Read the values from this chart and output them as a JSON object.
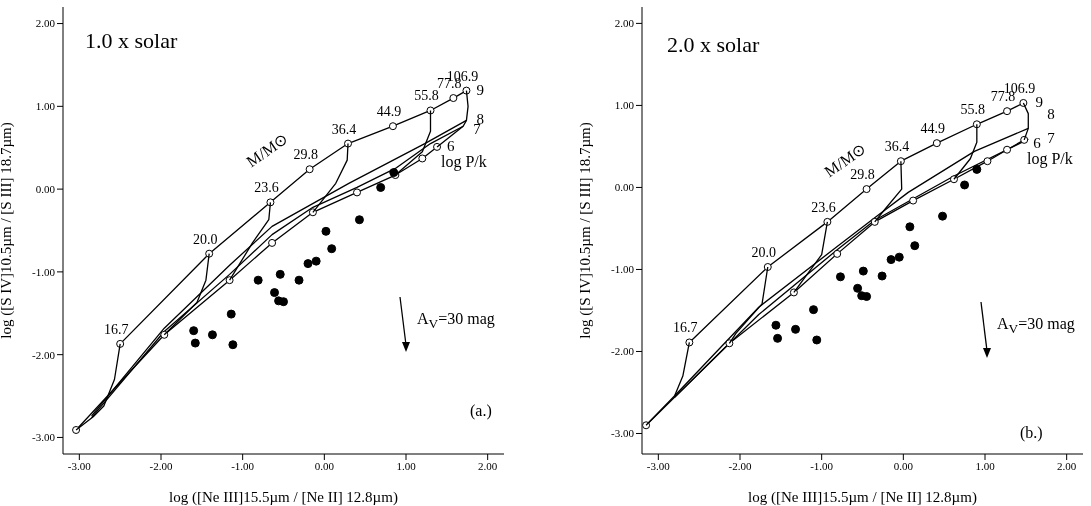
{
  "chart_data": [
    {
      "type": "line",
      "title": "1.0 x solar",
      "xlabel": "log ([Ne III]15.5µm / [Ne II] 12.8µm)",
      "ylabel": "log ([S IV]10.5µm / [S III] 18.7µm)",
      "xlim": [
        -3.2,
        2.2
      ],
      "ylim": [
        -3.2,
        2.2
      ],
      "xticks": [
        {
          "value": -3,
          "label": "-3.00"
        },
        {
          "value": -2,
          "label": "-2.00"
        },
        {
          "value": -1,
          "label": "-1.00"
        },
        {
          "value": 0,
          "label": "0.00"
        },
        {
          "value": 1,
          "label": "1.00"
        },
        {
          "value": 2,
          "label": "2.00"
        }
      ],
      "yticks": [
        {
          "value": -3,
          "label": "-3.00"
        },
        {
          "value": -2,
          "label": "-2.00"
        },
        {
          "value": -1,
          "label": "-1.00"
        },
        {
          "value": 0,
          "label": "0.00"
        },
        {
          "value": 1,
          "label": "1.00"
        },
        {
          "value": 2,
          "label": "2.00"
        }
      ],
      "series": [
        {
          "name": "9",
          "marker": "circle",
          "color": "#000000",
          "x": [
            -2.5,
            -1.41,
            -0.66,
            -0.18,
            0.29,
            0.84,
            1.3,
            1.58,
            1.74
          ],
          "values": [
            -1.87,
            -0.78,
            -0.16,
            0.24,
            0.55,
            0.76,
            0.95,
            1.1,
            1.19
          ]
        },
        {
          "name": "8",
          "type": "line",
          "marker": "none",
          "color": "#000000",
          "x": [
            -2.85,
            -1.96,
            -1.16,
            -0.64,
            0.3,
            1.23,
            1.74
          ],
          "values": [
            -2.74,
            -1.68,
            -0.92,
            -0.45,
            0.07,
            0.55,
            0.83
          ]
        },
        {
          "name": "7",
          "type": "line",
          "marker": "none",
          "color": "#000000",
          "x": [
            -2.85,
            -1.96,
            -1.16,
            -0.64,
            -0.14,
            0.4,
            0.87,
            1.3,
            1.7
          ],
          "values": [
            -2.76,
            -1.72,
            -1.03,
            -0.55,
            -0.22,
            0.02,
            0.25,
            0.55,
            0.76
          ]
        },
        {
          "name": "6",
          "type": "line",
          "marker": "circle",
          "color": "#000000",
          "x": [
            -3.04,
            -1.96,
            -1.16,
            -0.64,
            -0.14,
            0.4,
            0.87,
            1.2,
            1.38
          ],
          "values": [
            -2.91,
            -1.76,
            -1.1,
            -0.65,
            -0.28,
            -0.04,
            0.17,
            0.37,
            0.51
          ]
        },
        {
          "type": "line",
          "marker": "none",
          "color": "#000000",
          "x": [
            -2.5,
            -2.57,
            -2.7,
            -2.83,
            -3.04
          ],
          "values": [
            -1.87,
            -2.3,
            -2.62,
            -2.75,
            -2.91
          ]
        },
        {
          "type": "line",
          "marker": "none",
          "color": "#000000",
          "x": [
            -1.41,
            -1.45,
            -1.56,
            -1.96
          ],
          "values": [
            -0.78,
            -1.1,
            -1.37,
            -1.76
          ]
        },
        {
          "type": "line",
          "marker": "none",
          "color": "#000000",
          "x": [
            -0.66,
            -0.68,
            -0.88,
            -1.16
          ],
          "values": [
            -0.16,
            -0.37,
            -0.65,
            -1.1
          ]
        },
        {
          "type": "line",
          "marker": "none",
          "color": "#000000",
          "x": [
            0.29,
            0.28,
            0.14,
            -0.14
          ],
          "values": [
            0.55,
            0.35,
            0.07,
            -0.28
          ]
        },
        {
          "type": "line",
          "marker": "none",
          "color": "#000000",
          "x": [
            1.3,
            1.3,
            1.2,
            0.87
          ],
          "values": [
            0.95,
            0.7,
            0.45,
            0.17
          ]
        },
        {
          "type": "line",
          "marker": "none",
          "color": "#000000",
          "x": [
            1.74,
            1.76,
            1.74,
            1.7,
            1.38
          ],
          "values": [
            1.19,
            1.0,
            0.83,
            0.76,
            0.51
          ]
        },
        {
          "type": "scatter",
          "marker": "circle",
          "color": "#000000",
          "x": [
            0.85,
            0.69,
            0.43,
            0.02,
            0.09,
            -0.2,
            -0.1,
            -0.54,
            -0.81,
            -0.31,
            -0.61,
            -0.56,
            -0.5,
            -1.14,
            -1.6,
            -1.37,
            -1.58,
            -1.12
          ],
          "values": [
            0.2,
            0.02,
            -0.37,
            -0.51,
            -0.72,
            -0.9,
            -0.87,
            -1.03,
            -1.1,
            -1.1,
            -1.25,
            -1.35,
            -1.36,
            -1.51,
            -1.71,
            -1.76,
            -1.86,
            -1.88
          ]
        }
      ],
      "annotations": [
        "M/M⊙",
        "log P/k",
        "A$_{V}$=30 mag",
        "(a.)",
        {
          "text": "16.7",
          "x": -2.5,
          "y": -1.87
        },
        {
          "text": "20.0",
          "x": -1.41,
          "y": -0.78
        },
        {
          "text": "23.6",
          "x": -0.66,
          "y": -0.16
        },
        {
          "text": "29.8",
          "x": -0.18,
          "y": 0.24
        },
        {
          "text": "36.4",
          "x": 0.29,
          "y": 0.55
        },
        {
          "text": "44.9",
          "x": 0.84,
          "y": 0.76
        },
        {
          "text": "55.8",
          "x": 1.3,
          "y": 0.95
        },
        {
          "text": "77.8",
          "x": 1.58,
          "y": 1.1
        },
        {
          "text": "106.9",
          "x": 1.74,
          "y": 1.19
        }
      ]
    },
    {
      "type": "line",
      "title": "2.0 x solar",
      "xlabel": "log ([Ne III]15.5µm / [Ne II] 12.8µm)",
      "ylabel": "log ([S IV]10.5µm / [S III] 18.7µm)",
      "xlim": [
        -3.2,
        2.2
      ],
      "ylim": [
        -3.25,
        2.2
      ],
      "xticks": [
        {
          "value": -3,
          "label": "-3.00"
        },
        {
          "value": -2,
          "label": "-2.00"
        },
        {
          "value": -1,
          "label": "-1.00"
        },
        {
          "value": 0,
          "label": "0.00"
        },
        {
          "value": 1,
          "label": "1.00"
        },
        {
          "value": 2,
          "label": "2.00"
        }
      ],
      "yticks": [
        {
          "value": -3,
          "label": "-3.00"
        },
        {
          "value": -2,
          "label": "-2.00"
        },
        {
          "value": -1,
          "label": "-1.00"
        },
        {
          "value": 0,
          "label": "0.00"
        },
        {
          "value": 1,
          "label": "1.00"
        },
        {
          "value": 2,
          "label": "2.00"
        }
      ],
      "series": [
        {
          "name": "9",
          "marker": "circle",
          "color": "#000000",
          "x": [
            -2.62,
            -1.66,
            -0.93,
            -0.45,
            -0.03,
            0.41,
            0.9,
            1.27,
            1.47
          ],
          "values": [
            -1.89,
            -0.97,
            -0.42,
            -0.02,
            0.32,
            0.54,
            0.77,
            0.93,
            1.03
          ]
        },
        {
          "name": "8",
          "type": "line",
          "marker": "none",
          "color": "#000000",
          "x": [
            -2.8,
            -1.77,
            -0.81,
            -0.35,
            0.06,
            0.87,
            1.53
          ],
          "values": [
            -2.54,
            -1.46,
            -0.72,
            -0.37,
            -0.06,
            0.44,
            0.72
          ]
        },
        {
          "name": "7",
          "type": "line",
          "marker": "none",
          "color": "#000000",
          "x": [
            -2.8,
            -1.77,
            -0.81,
            -0.35,
            0.62,
            1.53
          ],
          "values": [
            -2.56,
            -1.55,
            -0.76,
            -0.4,
            0.14,
            0.59
          ]
        },
        {
          "name": "6",
          "type": "line",
          "marker": "circle",
          "color": "#000000",
          "x": [
            -3.15,
            -2.13,
            -1.34,
            -0.81,
            -0.35,
            0.12,
            0.62,
            1.03,
            1.27,
            1.48
          ],
          "values": [
            -2.9,
            -1.9,
            -1.28,
            -0.81,
            -0.42,
            -0.16,
            0.1,
            0.32,
            0.46,
            0.58
          ]
        },
        {
          "type": "line",
          "marker": "none",
          "color": "#000000",
          "x": [
            -2.62,
            -2.7,
            -2.8,
            -3.15
          ],
          "values": [
            -1.89,
            -2.3,
            -2.54,
            -2.9
          ]
        },
        {
          "type": "line",
          "marker": "none",
          "color": "#000000",
          "x": [
            -1.66,
            -1.73,
            -2.05,
            -2.13
          ],
          "values": [
            -0.97,
            -1.42,
            -1.78,
            -1.9
          ]
        },
        {
          "type": "line",
          "marker": "none",
          "color": "#000000",
          "x": [
            -0.93,
            -1.0,
            -1.34
          ],
          "values": [
            -0.42,
            -0.82,
            -1.28
          ]
        },
        {
          "type": "line",
          "marker": "none",
          "color": "#000000",
          "x": [
            -0.03,
            -0.02,
            -0.22,
            -0.35
          ],
          "values": [
            0.32,
            -0.02,
            -0.26,
            -0.42
          ]
        },
        {
          "type": "line",
          "marker": "none",
          "color": "#000000",
          "x": [
            0.9,
            0.9,
            0.82,
            0.62
          ],
          "values": [
            0.77,
            0.55,
            0.35,
            0.1
          ]
        },
        {
          "type": "line",
          "marker": "none",
          "color": "#000000",
          "x": [
            1.47,
            1.53,
            1.53,
            1.48
          ],
          "values": [
            1.03,
            0.9,
            0.72,
            0.58
          ]
        },
        {
          "type": "scatter",
          "marker": "circle",
          "color": "#000000",
          "x": [
            0.9,
            0.75,
            0.48,
            0.08,
            0.14,
            -0.15,
            -0.05,
            -0.49,
            -0.77,
            -0.26,
            -0.56,
            -0.51,
            -0.45,
            -1.1,
            -1.56,
            -1.32,
            -1.54,
            -1.06
          ],
          "values": [
            0.22,
            0.03,
            -0.35,
            -0.48,
            -0.71,
            -0.88,
            -0.85,
            -1.02,
            -1.09,
            -1.08,
            -1.23,
            -1.32,
            -1.33,
            -1.49,
            -1.68,
            -1.73,
            -1.84,
            -1.86
          ]
        }
      ],
      "annotations": [
        "M/M⊙",
        "log P/k",
        "A$_{V}$=30 mag",
        "(b.)",
        {
          "text": "16.7",
          "x": -2.62,
          "y": -1.89
        },
        {
          "text": "20.0",
          "x": -1.66,
          "y": -0.97
        },
        {
          "text": "23.6",
          "x": -0.93,
          "y": -0.42
        },
        {
          "text": "29.8",
          "x": -0.45,
          "y": -0.02
        },
        {
          "text": "36.4",
          "x": -0.03,
          "y": 0.32
        },
        {
          "text": "44.9",
          "x": 0.41,
          "y": 0.54
        },
        {
          "text": "55.8",
          "x": 0.9,
          "y": 0.77
        },
        {
          "text": "77.8",
          "x": 1.27,
          "y": 0.93
        },
        {
          "text": "106.9",
          "x": 1.47,
          "y": 1.03
        }
      ]
    }
  ]
}
